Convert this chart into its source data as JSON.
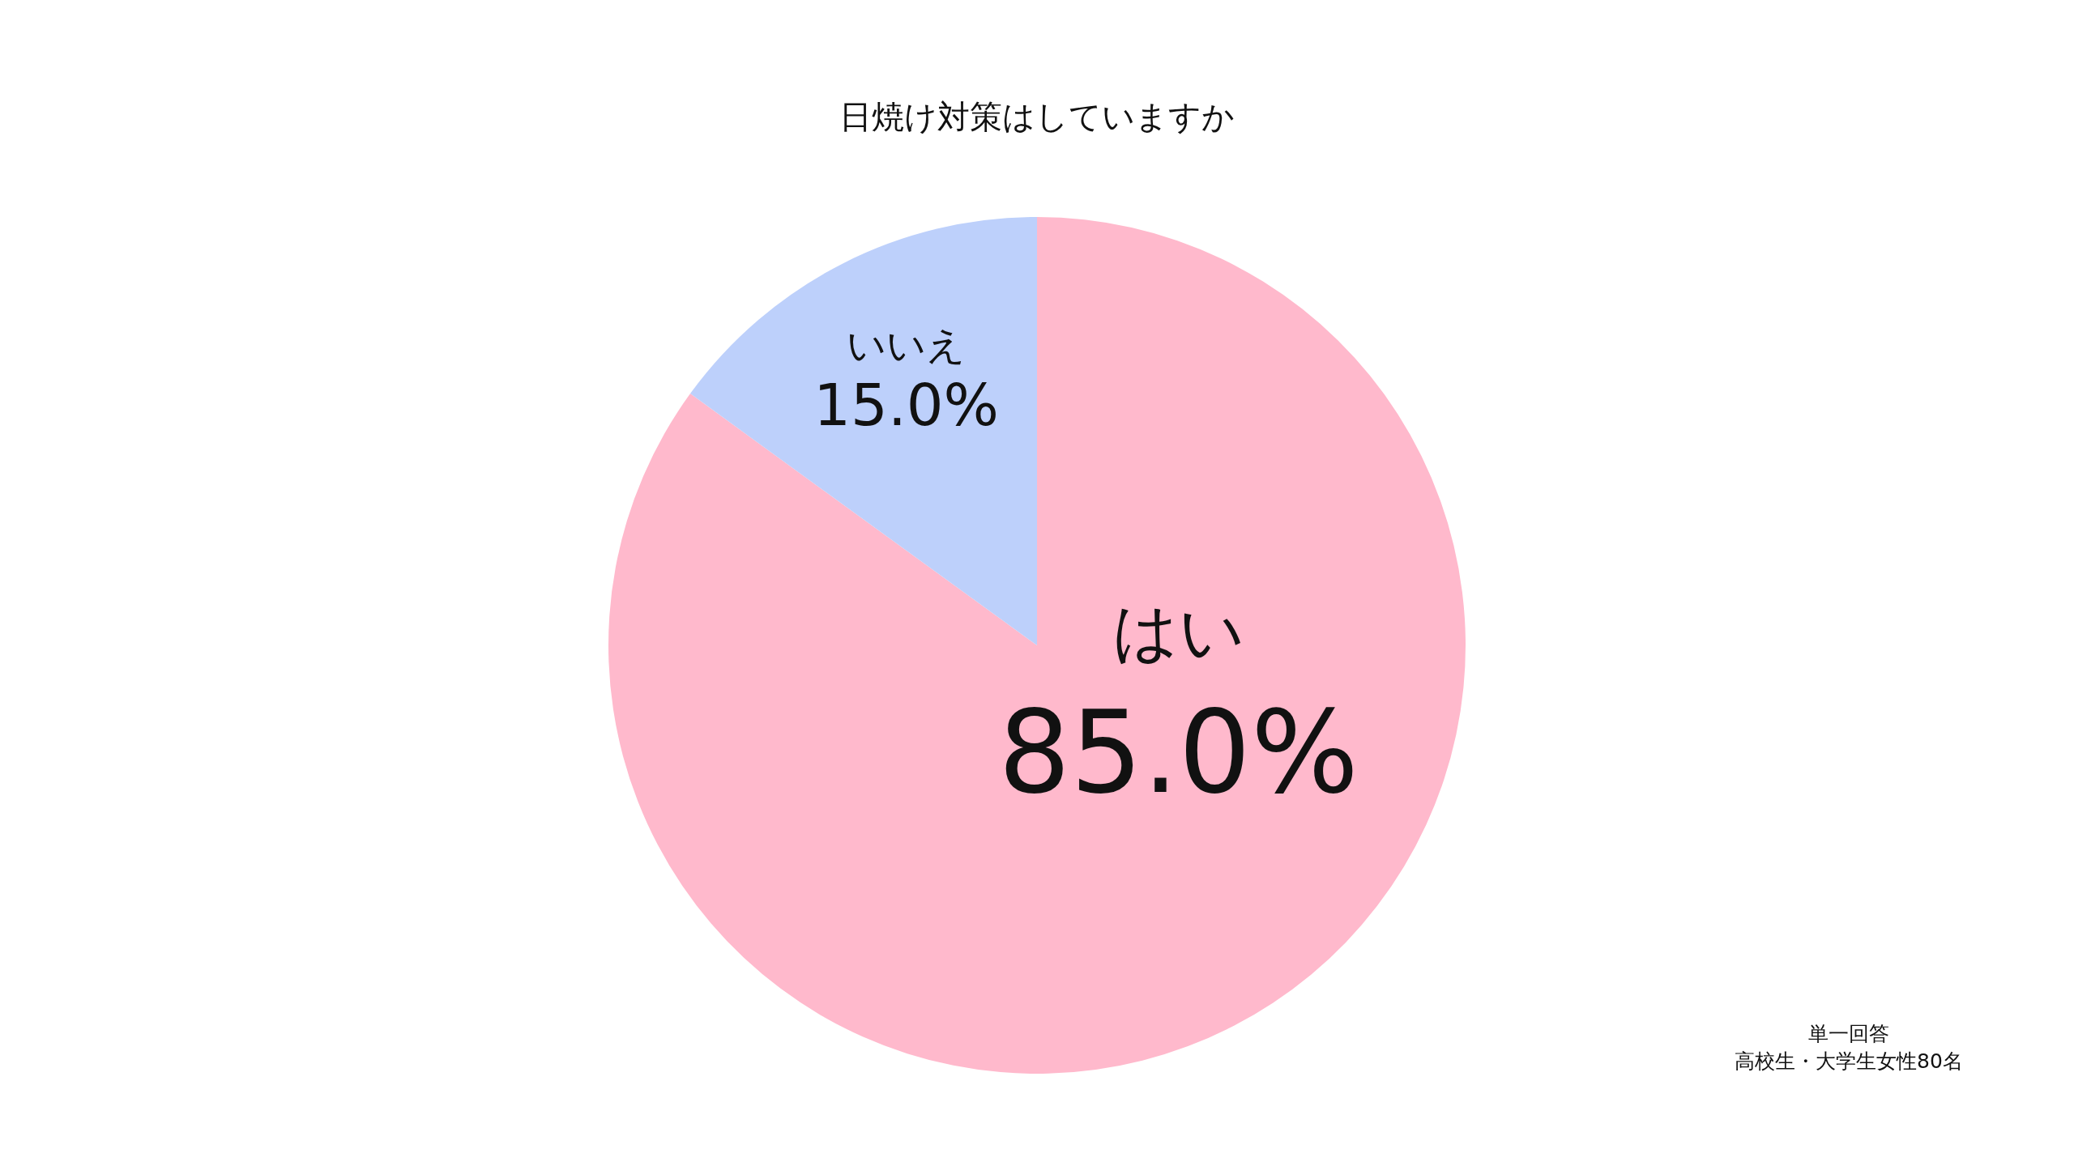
{
  "chart_data": {
    "type": "pie",
    "title": "日焼け対策はしていますか",
    "categories": [
      "はい",
      "いいえ"
    ],
    "values": [
      85,
      15
    ],
    "value_labels": [
      "85.0%",
      "15.0%"
    ],
    "colors": [
      "#ffb9cc",
      "#bdd0fb"
    ],
    "annotations": [
      "単一回答",
      "高校生・大学生女性80名"
    ]
  }
}
